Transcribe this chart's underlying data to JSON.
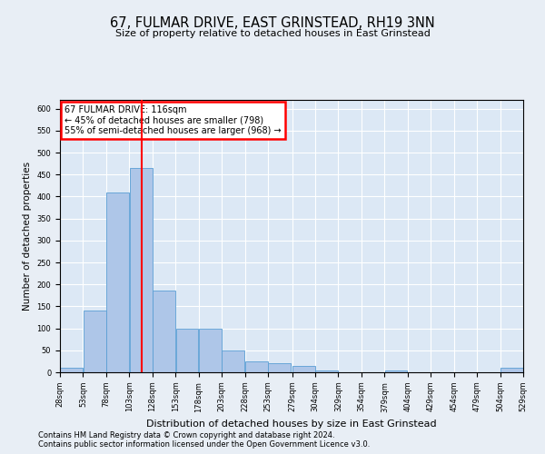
{
  "title": "67, FULMAR DRIVE, EAST GRINSTEAD, RH19 3NN",
  "subtitle": "Size of property relative to detached houses in East Grinstead",
  "xlabel": "Distribution of detached houses by size in East Grinstead",
  "ylabel": "Number of detached properties",
  "footer_line1": "Contains HM Land Registry data © Crown copyright and database right 2024.",
  "footer_line2": "Contains public sector information licensed under the Open Government Licence v3.0.",
  "annotation_title": "67 FULMAR DRIVE: 116sqm",
  "annotation_line1": "← 45% of detached houses are smaller (798)",
  "annotation_line2": "55% of semi-detached houses are larger (968) →",
  "subject_value": 116,
  "bin_edges": [
    28,
    53,
    78,
    103,
    128,
    153,
    178,
    203,
    228,
    253,
    279,
    304,
    329,
    354,
    379,
    404,
    429,
    454,
    479,
    504,
    529
  ],
  "bar_heights": [
    10,
    140,
    410,
    465,
    185,
    100,
    100,
    50,
    25,
    20,
    15,
    5,
    0,
    0,
    5,
    0,
    0,
    0,
    0,
    10
  ],
  "bar_color": "#aec6e8",
  "bar_edge_color": "#5a9fd4",
  "red_line_x": 116,
  "background_color": "#e8eef5",
  "plot_bg_color": "#dce8f5",
  "grid_color": "#ffffff",
  "ylim": [
    0,
    620
  ],
  "yticks": [
    0,
    50,
    100,
    150,
    200,
    250,
    300,
    350,
    400,
    450,
    500,
    550,
    600
  ],
  "title_fontsize": 10.5,
  "subtitle_fontsize": 8,
  "ylabel_fontsize": 7.5,
  "xlabel_fontsize": 8,
  "tick_fontsize": 6,
  "annotation_fontsize": 7,
  "footer_fontsize": 6
}
